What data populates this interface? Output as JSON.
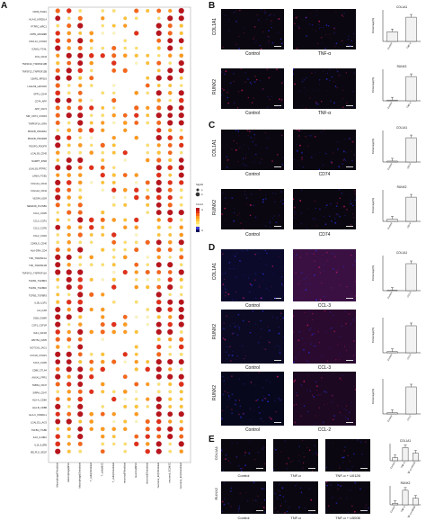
{
  "panels": {
    "A": {
      "letter": "A"
    },
    "B": {
      "letter": "B",
      "rows": [
        "COL1A1",
        "RUNX2"
      ],
      "conditions": [
        "Control",
        "TNF-α"
      ],
      "charts": [
        {
          "title": "COL1A1",
          "ylabel": "Percentage(%)",
          "categories": [
            "Control",
            "TNF-α"
          ],
          "values": [
            12,
            30
          ]
        },
        {
          "title": "RUNX2",
          "ylabel": "Percentage(%)",
          "categories": [
            "Control",
            "TNF-α"
          ],
          "values": [
            0.5,
            16
          ]
        }
      ]
    },
    "C": {
      "letter": "C",
      "rows": [
        "COL1A1",
        "RUNX2"
      ],
      "conditions": [
        "Control",
        "CD74"
      ],
      "charts": [
        {
          "title": "COL1A1",
          "ylabel": "Percentage(%)",
          "categories": [
            "Control",
            "CD74"
          ],
          "values": [
            0.5,
            13
          ]
        },
        {
          "title": "RUNX2",
          "ylabel": "Percentage(%)",
          "categories": [
            "Control",
            "CD74"
          ],
          "values": [
            0.3,
            3.2
          ]
        }
      ]
    },
    "D": {
      "letter": "D",
      "rows": [
        "COL1A1",
        "RUNX2",
        "RUNX2"
      ],
      "conditions": [
        [
          "Control",
          "CCL-3"
        ],
        [
          "Control",
          "CCL-3"
        ],
        [
          "Control",
          "CCL-2"
        ]
      ],
      "charts": [
        {
          "title": "COL1A1",
          "ylabel": "Percentage(%)",
          "categories": [
            "Control",
            "CCL3"
          ],
          "values": [
            0.5,
            40
          ]
        },
        {
          "title": "",
          "ylabel": "Percentage(%)",
          "categories": [
            "Control",
            "CCL3"
          ],
          "values": [
            0.5,
            12
          ]
        },
        {
          "title": "",
          "ylabel": "Percentage(%)",
          "categories": [
            "Control",
            "CCL2"
          ],
          "values": [
            0.3,
            6
          ]
        }
      ]
    },
    "E": {
      "letter": "E",
      "rows": [
        "COL1A1",
        "RUNX2"
      ],
      "conditions": [
        "Control",
        "TNF-α",
        "TNF-α + U0126"
      ],
      "conditions2": [
        "Control",
        "TNF-α",
        "TNF-α + LB008"
      ],
      "charts": [
        {
          "title": "COL1A1",
          "categories": [
            "Control",
            "TNF-α",
            "TNF-α+U0126"
          ],
          "values": [
            8,
            35,
            20
          ]
        },
        {
          "title": "RUNX2",
          "categories": [
            "Control",
            "TNF-α",
            "TNF-α+LB008"
          ],
          "values": [
            4,
            40,
            18
          ]
        }
      ]
    }
  },
  "chart_data": {
    "type": "scatter",
    "note_labels": [
      "Significance",
      "Interaction probability"
    ],
    "columns": [
      "Macrophage|Fibroblast",
      "Macrophage|MSC",
      "Macrophage|Osteoblast",
      "T_cells|Fibroblast",
      "T_cells|MSC",
      "T_cells|Osteoblast",
      "neuronal|Fibroblast",
      "neuronal|MSC",
      "neuronal|Osteoblast",
      "neuronal_EC|Fibroblast",
      "neuronal_EC|MSC",
      "neuronal_EC|Osteoblast"
    ],
    "rows": [
      "CD99_PILRA",
      "HLA-E_KIR2DL4",
      "PTPRC_MRC1",
      "CD55_ADGRE5",
      "CXCL12_CXCR4",
      "ICAM1_ITGAL",
      "FN1_CD44",
      "TNFSF10_TNFRSF10B",
      "TNFSF13_TNFRSF13B",
      "C5AR1_RPS19",
      "LGALS9_HAVCR2",
      "SPP1_CD44",
      "CD74_APP",
      "APP_CD74",
      "MIF_CD74_CXCR4",
      "TNFRSF1A_GRN",
      "PDGFB_PDGFRA",
      "PDGFB_PDGFRB",
      "PDGFD_PDGFR",
      "LGALS9_CD45",
      "NAMPT_INSR",
      "LGALS9_PTPRC",
      "LAMA_ITGB1",
      "COL1A1_CD44",
      "COL1A2_CD44",
      "VEGFA_KDR",
      "SEMA4D_PLXNB1",
      "CCL4_CCR5",
      "CCL3_CCR1",
      "CCL3_CCR5",
      "CCL2_CCR2",
      "CD40LG_CD40",
      "HLA-DRA_CD4",
      "TNF_TNFRSF1A",
      "TNF_TNFRSF1B",
      "TNFSF12_TNFRSF12A",
      "TGFB1_TGFBR1",
      "TGFB1_TGFBR2",
      "TGFB3_TGFBR3",
      "IL1B_IL1R1",
      "IL6_IL6R",
      "OSM_OSMR",
      "CSF1_CSF1R",
      "IGF1_IGF1R",
      "WNT5A_FZD5",
      "NOTCH1_JAG1",
      "CXCL8_CXCR1",
      "CCL5_CCR5",
      "CD86_CTLA4",
      "ANXA1_FPR1",
      "THBS1_CD47",
      "SIRPA_CD47",
      "HLA-A_CD8A",
      "HLA-B_CD8B",
      "HLA-C_KIR2DL1",
      "LGALS3_LAG3",
      "TGFB1_ITGB6",
      "IL10_IL10RA",
      "IL15_IL2RB",
      "SELPLG_SELP"
    ],
    "values_note": "dot color = interaction probability (white→yellow→orange→red), dot size = significance",
    "legend": {
      "title": "Significance",
      "levels": [
        "p < 0.01",
        "0.01 < p < 0.05"
      ],
      "color_title": "Commun. Prob.",
      "color_range": [
        "min",
        "max"
      ]
    }
  }
}
